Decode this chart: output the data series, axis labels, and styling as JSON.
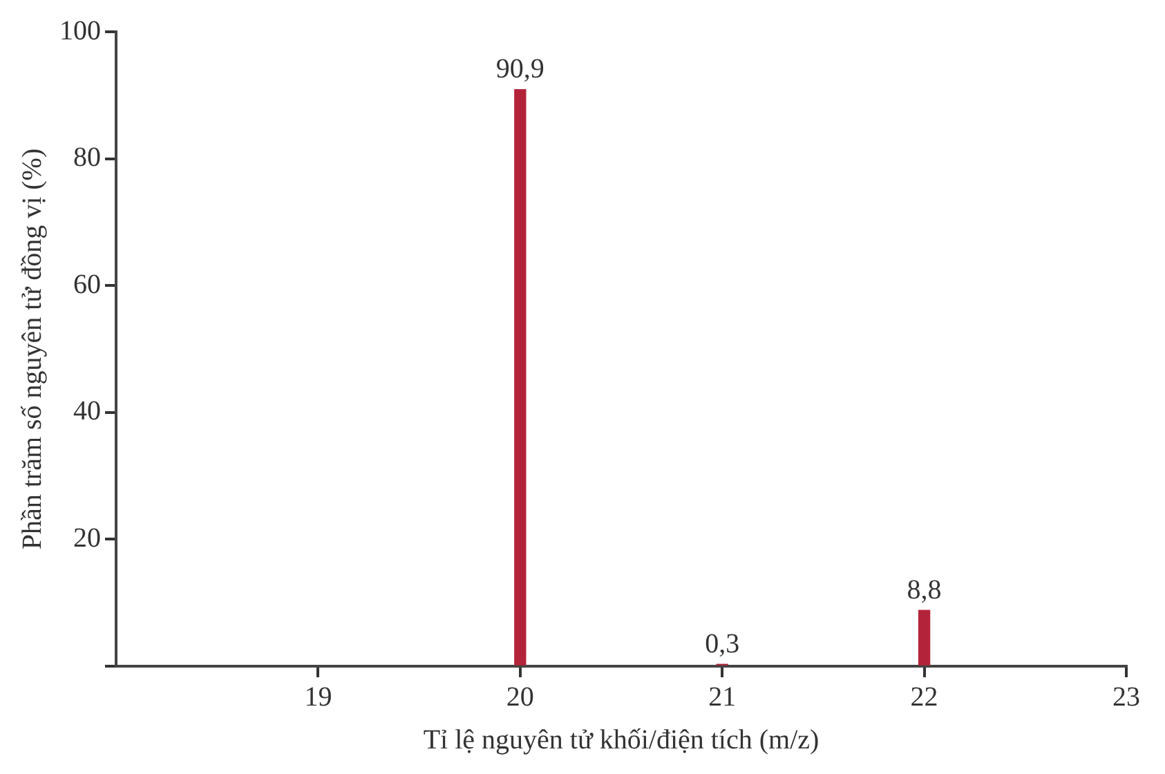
{
  "chart_data": {
    "type": "bar",
    "x": [
      20,
      21,
      22
    ],
    "values": [
      90.9,
      0.3,
      8.8
    ],
    "value_labels": [
      "90,9",
      "0,3",
      "8,8"
    ],
    "color": "#b3243a",
    "xlabel": "Tỉ lệ nguyên tử khối/điện tích (m/z)",
    "ylabel": "Phần trăm số nguyên tử đồng vị (%)",
    "xlim": [
      18,
      23
    ],
    "xticks": [
      19,
      20,
      21,
      22,
      23
    ],
    "ylim": [
      0,
      100
    ],
    "yticks": [
      {
        "value": 0,
        "label": null
      },
      20,
      40,
      60,
      80,
      100
    ],
    "grid": false,
    "legend": false
  }
}
